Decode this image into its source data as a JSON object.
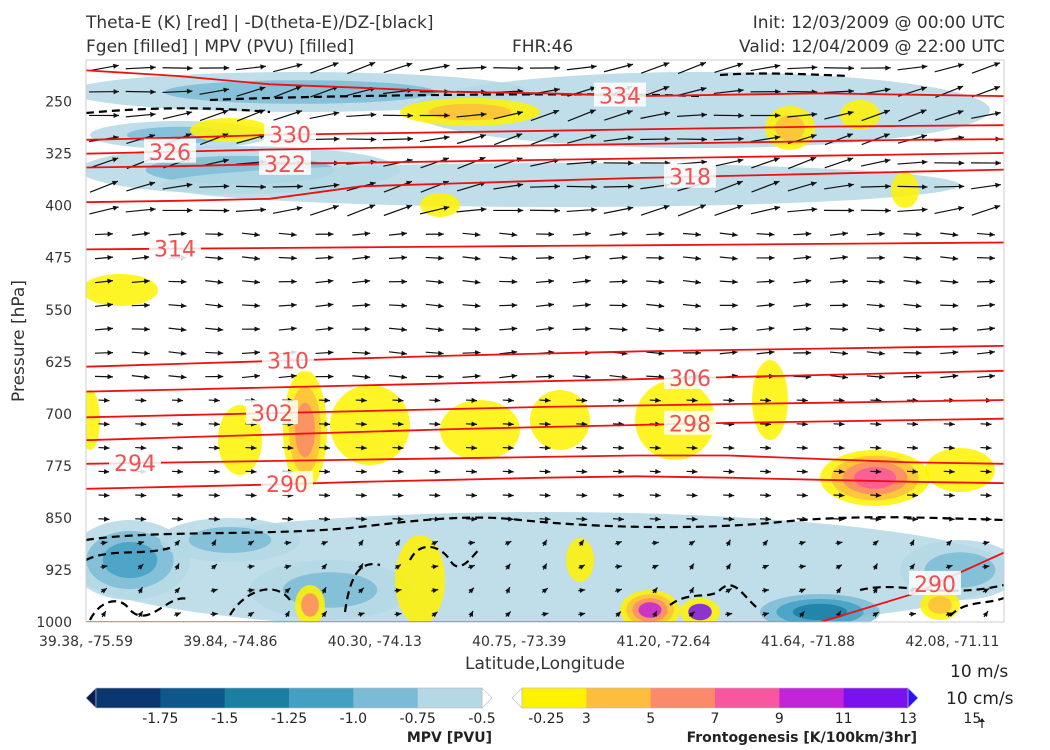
{
  "header": {
    "line1_left": "Theta-E (K) [red] | -D(theta-E)/DZ-[black]",
    "line2_left": "Fgen [filled] | MPV (PVU) [filled]",
    "fhr": "FHR:46",
    "init": "Init: 12/03/2009 @ 00:00 UTC",
    "valid": "Valid: 12/04/2009 @ 22:00 UTC"
  },
  "chart_data": {
    "type": "cross-section",
    "xlabel": "Latitude,Longitude",
    "ylabel": "Pressure [hPa]",
    "x_ticks": [
      "39.38, -75.59",
      "39.84, -74.86",
      "40.30, -74.13",
      "40.75, -73.39",
      "41.20, -72.64",
      "41.64, -71.88",
      "42.08, -71.11"
    ],
    "y_ticks": [
      250,
      325,
      400,
      475,
      550,
      625,
      700,
      775,
      850,
      925,
      1000
    ],
    "ylim": [
      1000,
      190
    ],
    "y_scale": "linear-inverted",
    "theta_e_contours": [
      {
        "label": "334",
        "p": [
          205,
          213,
          225,
          230,
          236,
          238,
          242,
          240,
          238,
          240,
          242
        ]
      },
      {
        "label": "330",
        "p": [
          305,
          302,
          298,
          296,
          294,
          292,
          290,
          288,
          286,
          285,
          284
        ]
      },
      {
        "label": "326",
        "p": [
          325,
          322,
          319,
          317,
          315,
          313,
          311,
          309,
          307,
          305,
          304
        ]
      },
      {
        "label": "322",
        "p": [
          345,
          343,
          340,
          338,
          336,
          334,
          332,
          330,
          328,
          326,
          324
        ]
      },
      {
        "label": "318",
        "p": [
          395,
          393,
          390,
          372,
          368,
          364,
          360,
          357,
          354,
          351,
          348
        ]
      },
      {
        "label": "314",
        "p": [
          463,
          462,
          461,
          460,
          459,
          458,
          457,
          456,
          455,
          454,
          453
        ]
      },
      {
        "label": "310",
        "p": [
          632,
          628,
          624,
          620,
          616,
          613,
          610,
          608,
          606,
          604,
          602
        ]
      },
      {
        "label": "306",
        "p": [
          668,
          665,
          662,
          659,
          656,
          653,
          650,
          647,
          644,
          641,
          638
        ]
      },
      {
        "label": "302",
        "p": [
          705,
          702,
          699,
          696,
          693,
          690,
          688,
          686,
          684,
          682,
          680
        ]
      },
      {
        "label": "298",
        "p": [
          738,
          734,
          730,
          726,
          722,
          719,
          716,
          713,
          711,
          709,
          707
        ]
      },
      {
        "label": "294",
        "p": [
          772,
          770,
          768,
          766,
          764,
          762,
          760,
          760,
          765,
          770,
          772
        ]
      },
      {
        "label": "290",
        "p": [
          808,
          805,
          802,
          798,
          795,
          792,
          790,
          792,
          795,
          798,
          800
        ]
      },
      {
        "label": "290",
        "p": [
          1000,
          1000,
          1000,
          1000,
          1000,
          1000,
          1000,
          1000,
          1000,
          960,
          900
        ]
      }
    ],
    "colorbars": [
      {
        "title": "MPV [PVU]",
        "ticks": [
          "-1.75",
          "-1.5",
          "-1.25",
          "-1.0",
          "-0.75",
          "-0.5",
          "-0.25"
        ],
        "colors": [
          "#081d58",
          "#0b3770",
          "#0d578a",
          "#1b7fa3",
          "#43a0c3",
          "#7cbbd6",
          "#b4d8e5",
          "#ffffff"
        ]
      },
      {
        "title": "Frontogenesis [K/100km/3hr]",
        "ticks": [
          "3",
          "5",
          "7",
          "9",
          "11",
          "13",
          "15"
        ],
        "colors": [
          "#ffffff",
          "#fff200",
          "#fdbe3d",
          "#fb8a6a",
          "#f857a0",
          "#c224d8",
          "#7a12ee",
          "#2c12f6"
        ]
      }
    ],
    "wind_scale": [
      "10 m/s",
      "10 cm/s"
    ]
  }
}
